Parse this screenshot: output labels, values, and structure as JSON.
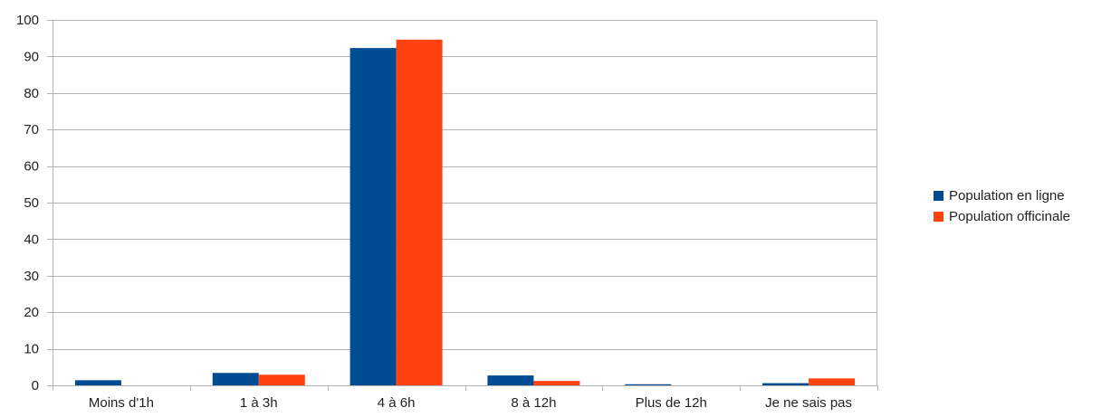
{
  "chart_data": {
    "type": "bar",
    "title": "",
    "xlabel": "",
    "ylabel": "",
    "ylim": [
      0,
      100
    ],
    "yticks": [
      0,
      10,
      20,
      30,
      40,
      50,
      60,
      70,
      80,
      90,
      100
    ],
    "categories": [
      "Moins d'1h",
      "1 à 3h",
      "4 à 6h",
      "8 à 12h",
      "Plus de 12h",
      "Je ne sais pas"
    ],
    "series": [
      {
        "name": "Population en ligne",
        "color": "#004c93",
        "values": [
          1.4,
          3.4,
          92.3,
          2.7,
          0.3,
          0.6
        ]
      },
      {
        "name": "Population officinale",
        "color": "#ff420e",
        "values": [
          0,
          2.9,
          94.6,
          1.2,
          0,
          1.9
        ]
      }
    ],
    "grid": true,
    "legend_position": "right"
  }
}
